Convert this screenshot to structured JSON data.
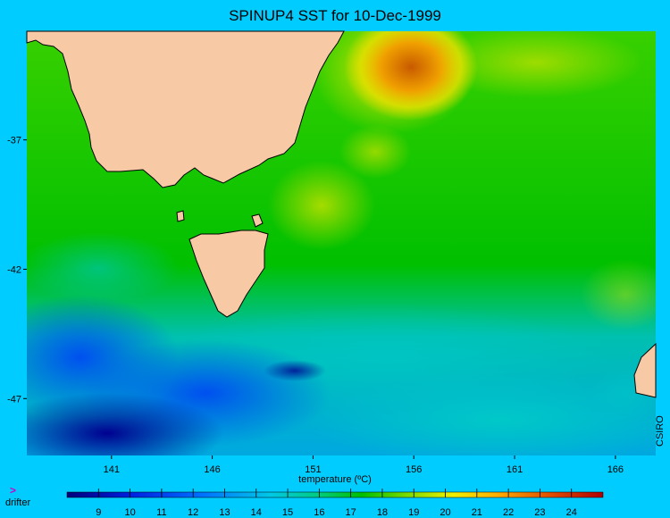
{
  "title": "SPINUP4 SST for 10-Dec-1999",
  "credit": "CSIRO",
  "legend": {
    "marker": ">",
    "label": "drifter"
  },
  "map": {
    "lon_range": [
      136.8,
      168.0
    ],
    "lat_range": [
      -49.2,
      -32.8
    ],
    "lon_ticks": [
      141,
      146,
      151,
      156,
      161,
      166
    ],
    "lat_ticks": [
      -37,
      -42,
      -47
    ],
    "land_color": "#f7c9a5",
    "ocean_bg_color": "#00c000"
  },
  "colorbar": {
    "title": "temperature (ºC)",
    "min": 8,
    "max": 25,
    "tick_labels": [
      9,
      10,
      11,
      12,
      13,
      14,
      15,
      16,
      17,
      18,
      19,
      20,
      21,
      22,
      23,
      24
    ]
  }
}
